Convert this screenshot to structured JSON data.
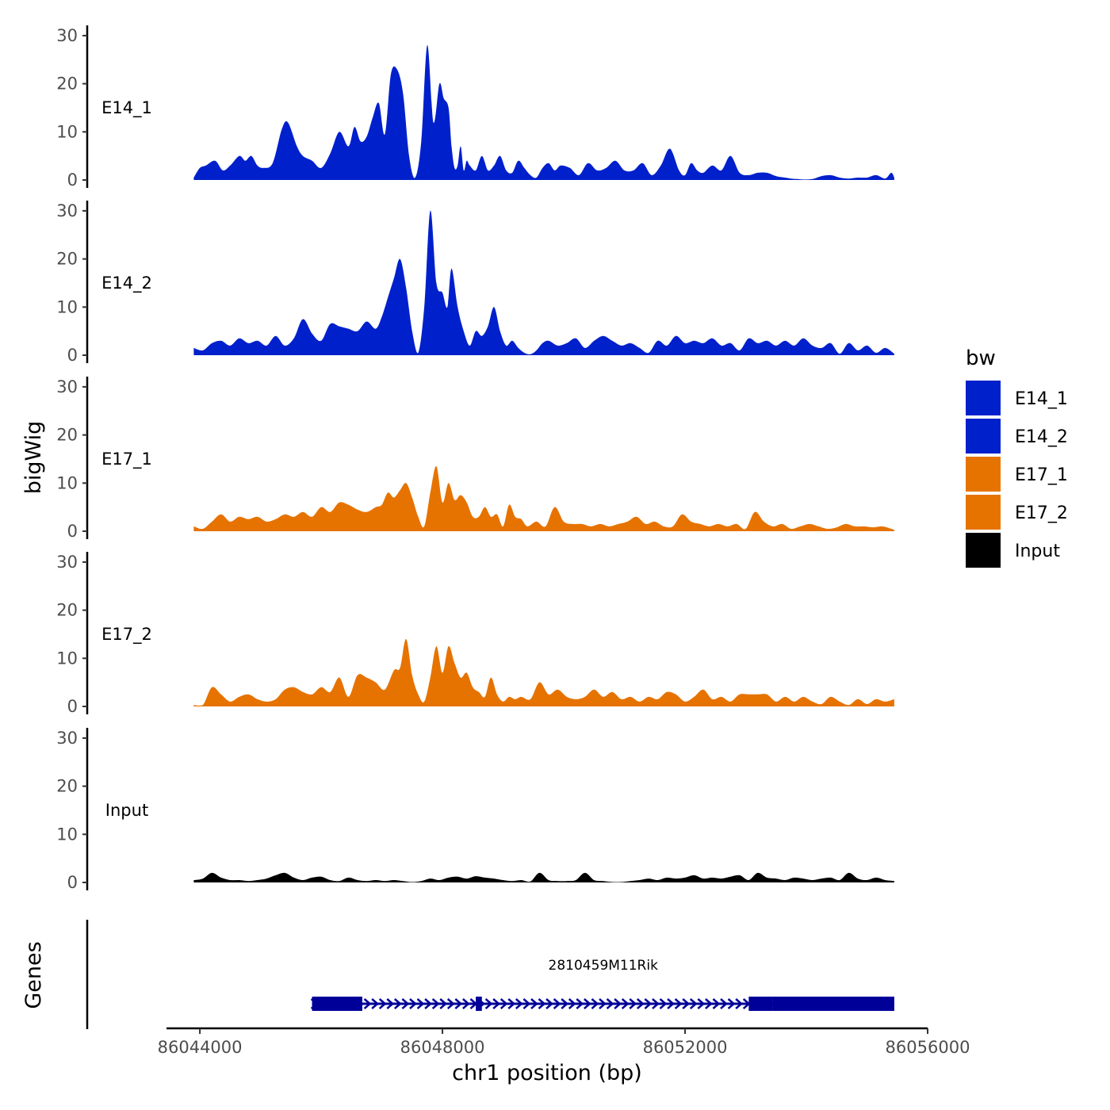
{
  "chart_data": {
    "type": "area",
    "ylabel": "bigWig",
    "xlabel": "chr1 position (bp)",
    "genes_label": "Genes",
    "xlim": [
      86043450,
      86056000
    ],
    "ylim": [
      0,
      32
    ],
    "y_ticks": [
      0,
      10,
      20,
      30
    ],
    "y_tick_labels": [
      "0",
      "10",
      "20",
      "30"
    ],
    "x_ticks": [
      86044000,
      86048000,
      86052000,
      86056000
    ],
    "x_tick_labels": [
      "86044000",
      "86048000",
      "86052000",
      "86056000"
    ],
    "legend": {
      "title": "bw",
      "entries": [
        {
          "label": "E14_1",
          "color": "#0020CC"
        },
        {
          "label": "E14_2",
          "color": "#0020CC"
        },
        {
          "label": "E17_1",
          "color": "#E67300"
        },
        {
          "label": "E17_2",
          "color": "#E67300"
        },
        {
          "label": "Input",
          "color": "#000000"
        }
      ]
    },
    "series": [
      {
        "name": "E14_1",
        "color": "#0020CC",
        "x": [
          86043900,
          86044000,
          86044100,
          86044250,
          86044380,
          86044500,
          86044650,
          86044750,
          86044850,
          86044950,
          86045050,
          86045200,
          86045350,
          86045450,
          86045600,
          86045700,
          86045850,
          86046000,
          86046150,
          86046300,
          86046450,
          86046550,
          86046650,
          86046750,
          86046850,
          86046950,
          86047050,
          86047150,
          86047250,
          86047350,
          86047450,
          86047550,
          86047650,
          86047750,
          86047850,
          86047950,
          86048020,
          86048100,
          86048150,
          86048200,
          86048250,
          86048300,
          86048350,
          86048400,
          86048450,
          86048550,
          86048650,
          86048750,
          86048850,
          86048950,
          86049050,
          86049150,
          86049250,
          86049350,
          86049450,
          86049550,
          86049650,
          86049750,
          86049850,
          86049950,
          86050100,
          86050250,
          86050400,
          86050550,
          86050700,
          86050850,
          86051000,
          86051150,
          86051300,
          86051450,
          86051600,
          86051750,
          86051900,
          86052000,
          86052100,
          86052200,
          86052300,
          86052450,
          86052600,
          86052750,
          86052900,
          86053050,
          86053200,
          86053350,
          86053500,
          86053650,
          86053750,
          86053850,
          86053950,
          86054100,
          86054250,
          86054400,
          86054550,
          86054700,
          86054850,
          86055000,
          86055150,
          86055300,
          86055400,
          86055450
        ],
        "values": [
          0.5,
          2.5,
          3.0,
          4.0,
          2.0,
          3.0,
          5.0,
          4.0,
          5.0,
          3.0,
          2.5,
          3.5,
          10.5,
          12.0,
          7.0,
          5.0,
          4.0,
          2.5,
          5.5,
          10.0,
          7.0,
          11.0,
          8.0,
          9.0,
          13.0,
          16.0,
          9.5,
          22.0,
          23.0,
          18.0,
          5.0,
          0.5,
          8.0,
          28.0,
          12.0,
          20.0,
          17.0,
          15.0,
          7.0,
          2.5,
          3.0,
          7.0,
          2.0,
          4.0,
          3.0,
          2.0,
          5.0,
          2.0,
          3.0,
          5.0,
          2.0,
          1.5,
          4.0,
          2.5,
          1.0,
          0.5,
          2.5,
          3.5,
          2.0,
          3.0,
          2.5,
          1.0,
          3.5,
          2.0,
          2.5,
          4.0,
          2.0,
          2.0,
          3.5,
          1.0,
          3.0,
          6.5,
          2.0,
          1.0,
          3.5,
          2.0,
          1.5,
          3.0,
          2.0,
          5.0,
          1.5,
          1.0,
          1.5,
          1.5,
          0.8,
          0.5,
          0.3,
          0.2,
          0.1,
          0.2,
          0.8,
          1.0,
          0.5,
          0.3,
          0.5,
          0.5,
          1.0,
          0.3,
          1.5,
          0.5
        ]
      },
      {
        "name": "E14_2",
        "color": "#0020CC",
        "x": [
          86043900,
          86044050,
          86044200,
          86044350,
          86044500,
          86044650,
          86044800,
          86044950,
          86045100,
          86045250,
          86045400,
          86045550,
          86045700,
          86045850,
          86046000,
          86046150,
          86046300,
          86046450,
          86046600,
          86046750,
          86046900,
          86047000,
          86047100,
          86047200,
          86047300,
          86047400,
          86047500,
          86047600,
          86047700,
          86047800,
          86047900,
          86048000,
          86048080,
          86048150,
          86048250,
          86048350,
          86048450,
          86048550,
          86048650,
          86048750,
          86048850,
          86048950,
          86049050,
          86049150,
          86049250,
          86049350,
          86049450,
          86049550,
          86049650,
          86049750,
          86049900,
          86050050,
          86050200,
          86050350,
          86050500,
          86050650,
          86050800,
          86050950,
          86051100,
          86051250,
          86051400,
          86051550,
          86051700,
          86051850,
          86052000,
          86052150,
          86052300,
          86052450,
          86052600,
          86052750,
          86052900,
          86053050,
          86053200,
          86053350,
          86053500,
          86053650,
          86053800,
          86053950,
          86054100,
          86054250,
          86054400,
          86054550,
          86054700,
          86054850,
          86055000,
          86055150,
          86055300,
          86055450
        ],
        "values": [
          1.5,
          1.0,
          2.5,
          3.0,
          2.0,
          3.5,
          2.5,
          3.0,
          2.0,
          4.0,
          2.0,
          3.5,
          7.5,
          4.5,
          3.0,
          6.5,
          6.0,
          5.5,
          5.0,
          7.0,
          5.5,
          8.0,
          12.0,
          16.0,
          20.0,
          14.0,
          5.0,
          0.5,
          10.0,
          30.0,
          15.0,
          13.0,
          10.0,
          18.0,
          10.0,
          5.0,
          2.0,
          5.0,
          4.0,
          6.0,
          10.0,
          5.0,
          2.0,
          3.0,
          1.5,
          0.5,
          0.2,
          1.0,
          2.5,
          3.0,
          2.0,
          2.5,
          3.5,
          1.5,
          3.0,
          4.0,
          3.0,
          2.0,
          2.5,
          1.5,
          0.5,
          3.0,
          2.0,
          4.0,
          2.5,
          3.0,
          2.5,
          3.5,
          2.0,
          2.5,
          1.0,
          3.5,
          2.5,
          3.0,
          2.0,
          3.0,
          2.0,
          3.5,
          2.0,
          1.5,
          2.5,
          0.3,
          2.5,
          1.0,
          2.0,
          0.5,
          1.5,
          0.3
        ]
      },
      {
        "name": "E17_1",
        "color": "#E67300",
        "x": [
          86043900,
          86044050,
          86044200,
          86044350,
          86044500,
          86044650,
          86044800,
          86044950,
          86045100,
          86045250,
          86045400,
          86045550,
          86045700,
          86045850,
          86046000,
          86046150,
          86046300,
          86046450,
          86046600,
          86046750,
          86046900,
          86047000,
          86047100,
          86047200,
          86047300,
          86047400,
          86047500,
          86047600,
          86047700,
          86047800,
          86047900,
          86048000,
          86048100,
          86048200,
          86048300,
          86048400,
          86048500,
          86048600,
          86048700,
          86048800,
          86048900,
          86049000,
          86049100,
          86049200,
          86049300,
          86049400,
          86049550,
          86049700,
          86049850,
          86050000,
          86050150,
          86050300,
          86050450,
          86050600,
          86050750,
          86050900,
          86051050,
          86051200,
          86051350,
          86051500,
          86051650,
          86051800,
          86051950,
          86052100,
          86052250,
          86052400,
          86052550,
          86052700,
          86052850,
          86053000,
          86053150,
          86053300,
          86053450,
          86053600,
          86053750,
          86053900,
          86054050,
          86054200,
          86054350,
          86054500,
          86054650,
          86054800,
          86054950,
          86055100,
          86055250,
          86055400,
          86055450
        ],
        "values": [
          1.0,
          0.5,
          2.0,
          3.5,
          2.0,
          3.0,
          2.5,
          3.0,
          2.0,
          2.5,
          3.5,
          3.0,
          4.0,
          3.0,
          5.0,
          4.0,
          6.0,
          5.5,
          4.5,
          4.0,
          5.0,
          5.5,
          8.0,
          7.0,
          8.5,
          10.0,
          7.0,
          3.0,
          1.0,
          8.0,
          13.5,
          6.0,
          10.0,
          6.5,
          7.5,
          6.0,
          3.0,
          3.0,
          5.0,
          3.0,
          3.5,
          1.0,
          5.5,
          3.0,
          2.5,
          1.0,
          2.0,
          1.0,
          5.0,
          2.0,
          1.5,
          1.5,
          1.0,
          1.5,
          1.0,
          1.5,
          2.0,
          3.0,
          1.5,
          2.0,
          1.0,
          1.0,
          3.5,
          2.0,
          1.5,
          1.0,
          1.5,
          1.0,
          1.5,
          0.5,
          4.0,
          2.0,
          1.0,
          1.5,
          0.5,
          1.0,
          1.5,
          1.0,
          0.5,
          0.8,
          1.5,
          1.0,
          1.0,
          0.8,
          1.0,
          0.5,
          0.3
        ]
      },
      {
        "name": "E17_2",
        "color": "#E67300",
        "x": [
          86043900,
          86044050,
          86044200,
          86044350,
          86044500,
          86044650,
          86044800,
          86044950,
          86045100,
          86045250,
          86045400,
          86045550,
          86045700,
          86045850,
          86046000,
          86046150,
          86046300,
          86046450,
          86046600,
          86046750,
          86046900,
          86047050,
          86047200,
          86047300,
          86047400,
          86047500,
          86047600,
          86047700,
          86047800,
          86047900,
          86048000,
          86048100,
          86048200,
          86048300,
          86048400,
          86048500,
          86048600,
          86048700,
          86048800,
          86048900,
          86049000,
          86049100,
          86049200,
          86049300,
          86049450,
          86049600,
          86049750,
          86049900,
          86050050,
          86050200,
          86050350,
          86050500,
          86050650,
          86050800,
          86050950,
          86051100,
          86051250,
          86051400,
          86051550,
          86051700,
          86051850,
          86052000,
          86052150,
          86052300,
          86052450,
          86052600,
          86052750,
          86052900,
          86053050,
          86053200,
          86053350,
          86053500,
          86053650,
          86053800,
          86053950,
          86054100,
          86054250,
          86054400,
          86054550,
          86054700,
          86054850,
          86055000,
          86055150,
          86055300,
          86055450
        ],
        "values": [
          0.3,
          0.3,
          4.0,
          2.5,
          1.0,
          2.0,
          2.5,
          1.5,
          1.0,
          1.5,
          3.5,
          4.0,
          3.0,
          2.5,
          4.0,
          3.0,
          6.0,
          2.0,
          6.5,
          6.0,
          5.0,
          3.5,
          7.5,
          8.0,
          14.0,
          6.5,
          2.5,
          1.0,
          6.0,
          12.5,
          7.0,
          12.5,
          9.0,
          6.0,
          7.0,
          4.0,
          3.0,
          2.0,
          6.0,
          2.5,
          1.0,
          2.0,
          1.5,
          2.0,
          1.5,
          5.0,
          2.5,
          3.5,
          2.0,
          1.5,
          2.0,
          3.5,
          2.0,
          3.0,
          1.5,
          2.0,
          1.0,
          2.0,
          1.5,
          3.0,
          2.5,
          1.0,
          2.0,
          3.5,
          1.5,
          2.0,
          1.0,
          2.5,
          2.5,
          2.5,
          2.5,
          1.0,
          2.0,
          1.0,
          2.0,
          1.0,
          0.5,
          2.0,
          1.0,
          0.3,
          1.5,
          0.5,
          1.5,
          1.0,
          1.5
        ]
      },
      {
        "name": "Input",
        "color": "#000000",
        "x": [
          86043900,
          86044050,
          86044200,
          86044350,
          86044500,
          86044650,
          86044800,
          86044950,
          86045100,
          86045250,
          86045400,
          86045550,
          86045700,
          86045850,
          86046000,
          86046150,
          86046300,
          86046450,
          86046600,
          86046750,
          86046900,
          86047050,
          86047200,
          86047350,
          86047500,
          86047650,
          86047800,
          86047950,
          86048100,
          86048250,
          86048400,
          86048550,
          86048700,
          86048850,
          86049000,
          86049150,
          86049300,
          86049450,
          86049600,
          86049750,
          86049900,
          86050050,
          86050200,
          86050350,
          86050500,
          86050650,
          86050800,
          86050950,
          86051100,
          86051250,
          86051400,
          86051550,
          86051700,
          86051850,
          86052000,
          86052150,
          86052300,
          86052450,
          86052600,
          86052750,
          86052900,
          86053050,
          86053200,
          86053350,
          86053500,
          86053650,
          86053800,
          86053950,
          86054100,
          86054250,
          86054400,
          86054550,
          86054700,
          86054850,
          86055000,
          86055150,
          86055300,
          86055450
        ],
        "values": [
          0.5,
          0.8,
          2.0,
          1.0,
          0.5,
          0.5,
          0.3,
          0.5,
          0.8,
          1.5,
          2.0,
          1.0,
          0.5,
          1.0,
          1.2,
          0.5,
          0.3,
          1.0,
          0.5,
          0.3,
          0.5,
          0.3,
          0.5,
          0.3,
          0.1,
          0.3,
          0.8,
          0.5,
          1.0,
          1.2,
          0.8,
          1.3,
          1.0,
          0.8,
          0.5,
          0.3,
          0.5,
          0.2,
          2.0,
          0.5,
          0.3,
          0.3,
          0.5,
          2.0,
          0.5,
          0.3,
          0.1,
          0.1,
          0.3,
          0.5,
          0.8,
          0.5,
          1.0,
          0.8,
          1.0,
          1.5,
          0.8,
          1.0,
          0.8,
          1.2,
          1.5,
          0.5,
          2.0,
          1.0,
          0.8,
          0.5,
          1.0,
          0.8,
          0.5,
          0.8,
          1.0,
          0.5,
          2.0,
          0.8,
          0.5,
          1.0,
          0.5,
          0.3
        ]
      }
    ],
    "gene": {
      "name": "2810459M11Rik",
      "start": 86045850,
      "end": 86055450,
      "strand": "+",
      "exons": [
        [
          86045850,
          86046600
        ],
        [
          86046600,
          86046650
        ],
        [
          86048550,
          86048650
        ],
        [
          86053050,
          86053450
        ],
        [
          86053450,
          86055450
        ]
      ],
      "color": "#000099"
    }
  }
}
